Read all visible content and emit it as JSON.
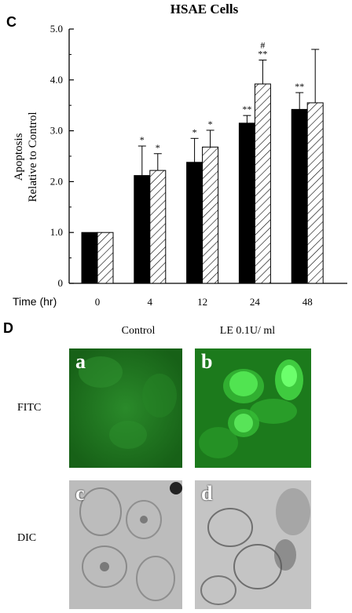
{
  "panel_c_letter": "C",
  "panel_d_letter": "D",
  "chart_data": {
    "type": "bar",
    "title": "HSAE   Cells",
    "ylabel_line1": "Apoptosis",
    "ylabel_line2": "Relative to Control",
    "xlabel": "Time  (hr)",
    "categories": [
      "0",
      "4",
      "12",
      "24",
      "48"
    ],
    "ylim": [
      0,
      5
    ],
    "yticks": [
      "0",
      "1.0",
      "2.0",
      "3.0",
      "4.0",
      "5.0"
    ],
    "series": [
      {
        "fill": "solid-black",
        "values": [
          1.0,
          2.12,
          2.38,
          3.15,
          3.42
        ],
        "errors": [
          0,
          0.58,
          0.47,
          0.15,
          0.33
        ]
      },
      {
        "fill": "hatched",
        "values": [
          1.0,
          2.22,
          2.68,
          3.92,
          3.55
        ],
        "errors": [
          0,
          0.33,
          0.33,
          0.47,
          1.05
        ]
      }
    ],
    "annotations": [
      {
        "category": 1,
        "series": 0,
        "text": "*"
      },
      {
        "category": 1,
        "series": 1,
        "text": "*"
      },
      {
        "category": 2,
        "series": 0,
        "text": "*"
      },
      {
        "category": 2,
        "series": 1,
        "text": "*"
      },
      {
        "category": 3,
        "series": 0,
        "text": "**"
      },
      {
        "category": 3,
        "series": 1,
        "text": "**"
      },
      {
        "category": 3,
        "series": 1,
        "text": "#"
      },
      {
        "category": 4,
        "series": 0,
        "text": "**"
      }
    ],
    "grid": false
  },
  "panel_d": {
    "col_control": "Control",
    "col_le": "LE  0.1U/ ml",
    "row_fitc": "FITC",
    "row_dic": "DIC",
    "label_a": "a",
    "label_b": "b",
    "label_c": "c",
    "label_d": "d",
    "colors": {
      "fitc_bg": "#1f7a1f",
      "fitc_bright": "#3df03d",
      "dic_bg": "#bdbdbd"
    }
  }
}
